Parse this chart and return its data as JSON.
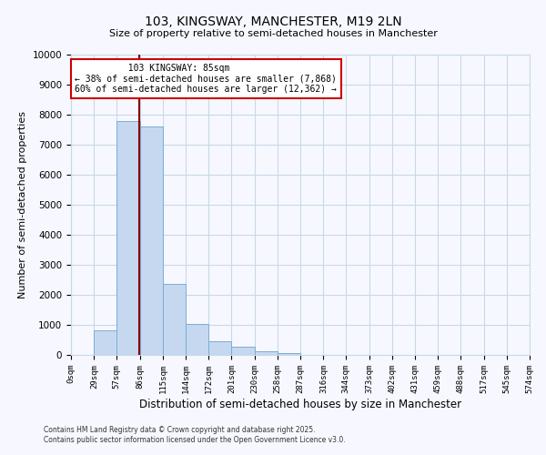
{
  "title": "103, KINGSWAY, MANCHESTER, M19 2LN",
  "subtitle": "Size of property relative to semi-detached houses in Manchester",
  "xlabel": "Distribution of semi-detached houses by size in Manchester",
  "ylabel": "Number of semi-detached properties",
  "bar_values": [
    0,
    820,
    7800,
    7600,
    2350,
    1020,
    450,
    280,
    130,
    60,
    10,
    0,
    0,
    0,
    0,
    0,
    0,
    0,
    0,
    0
  ],
  "bin_edges": [
    0,
    29,
    57,
    86,
    115,
    144,
    172,
    201,
    230,
    258,
    287,
    316,
    344,
    373,
    402,
    431,
    459,
    488,
    517,
    545,
    574
  ],
  "bin_labels": [
    "0sqm",
    "29sqm",
    "57sqm",
    "86sqm",
    "115sqm",
    "144sqm",
    "172sqm",
    "201sqm",
    "230sqm",
    "258sqm",
    "287sqm",
    "316sqm",
    "344sqm",
    "373sqm",
    "402sqm",
    "431sqm",
    "459sqm",
    "488sqm",
    "517sqm",
    "545sqm",
    "574sqm"
  ],
  "bar_color": "#c5d8f0",
  "bar_edge_color": "#7badd4",
  "property_size": 85,
  "property_label": "103 KINGSWAY: 85sqm",
  "pct_smaller": 38,
  "pct_larger": 60,
  "n_smaller": 7868,
  "n_larger": 12362,
  "vline_color": "#8b0000",
  "annotation_box_color": "#cc0000",
  "ylim": [
    0,
    10000
  ],
  "footer1": "Contains HM Land Registry data © Crown copyright and database right 2025.",
  "footer2": "Contains public sector information licensed under the Open Government Licence v3.0.",
  "bg_color": "#f7f8ff",
  "grid_color": "#c8d8e8"
}
